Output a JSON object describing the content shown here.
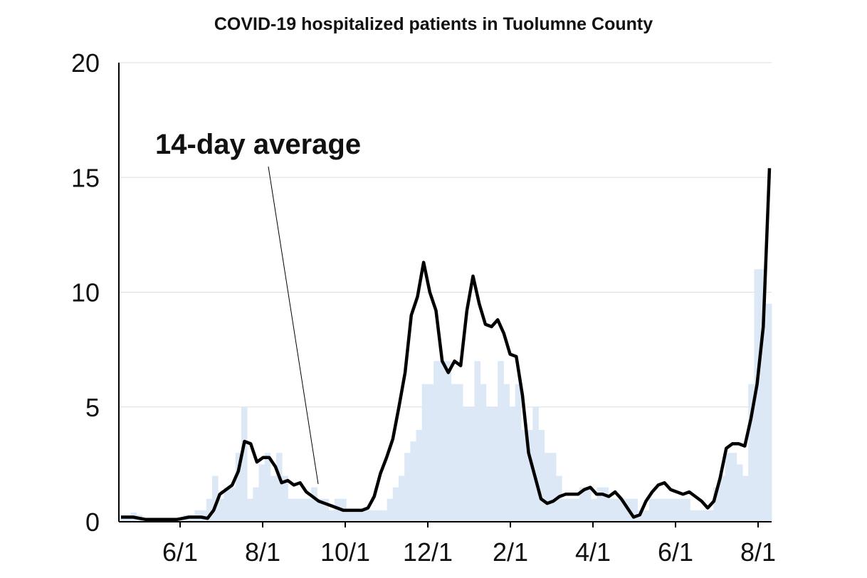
{
  "chart_data": {
    "type": "bar",
    "title": "COVID-19 hospitalized patients in Tuolumne County",
    "xlabel": "",
    "ylabel": "",
    "ylim": [
      0,
      20
    ],
    "y_ticks": [
      "0",
      "5",
      "10",
      "15",
      "20"
    ],
    "x_ticks": [
      "6/1",
      "8/1",
      "10/1",
      "12/1",
      "2/1",
      "4/1",
      "6/1",
      "8/1"
    ],
    "grid": true,
    "annotation": "14-day average",
    "colors": {
      "bars": "#dce8f5",
      "line": "#000000",
      "grid": "#dddddd",
      "axis": "#000000"
    },
    "series": [
      {
        "values": [
          0.3,
          0.3,
          0.4,
          0.3,
          0,
          0,
          0,
          0,
          0,
          0,
          0,
          0.3,
          0.3,
          0.5,
          0.5,
          1,
          2,
          1,
          1.5,
          1.5,
          3,
          5,
          1,
          1.5,
          2.5,
          3,
          2,
          3,
          2,
          1,
          1,
          1,
          1,
          1.5,
          1,
          1,
          0.5,
          1,
          1,
          0.5,
          0.5,
          0.5,
          0.5,
          0.5,
          0.5,
          0.5,
          1,
          1.5,
          2,
          3,
          3.5,
          4,
          6,
          6,
          7,
          7,
          7,
          6,
          6,
          5,
          5,
          7,
          6,
          5,
          5,
          7,
          6,
          5,
          6,
          4,
          4,
          5,
          4,
          3,
          3,
          2,
          1,
          1,
          1,
          1.5,
          1.5,
          1,
          1.5,
          1.5,
          1,
          1,
          1,
          1,
          1,
          0.5,
          0.5,
          1,
          1,
          1,
          1,
          1,
          1,
          1,
          0.5,
          0.5,
          0.5,
          0.5,
          1.5,
          2,
          3,
          3,
          2.5,
          2,
          6,
          11,
          11,
          9.5
        ]
      },
      {
        "values": [
          0.2,
          0.2,
          0.2,
          0.15,
          0.1,
          0.1,
          0.1,
          0.1,
          0.1,
          0.1,
          0.15,
          0.2,
          0.2,
          0.2,
          0.15,
          0.5,
          1.2,
          1.4,
          1.6,
          2.2,
          3.5,
          3.4,
          2.6,
          2.8,
          2.8,
          2.4,
          1.7,
          1.8,
          1.6,
          1.7,
          1.3,
          1.1,
          0.9,
          0.8,
          0.7,
          0.6,
          0.5,
          0.5,
          0.5,
          0.5,
          0.6,
          1.1,
          2.1,
          2.8,
          3.6,
          5,
          6.5,
          9,
          9.8,
          11.3,
          10,
          9.2,
          7,
          6.5,
          7,
          6.8,
          9.2,
          10.7,
          9.5,
          8.6,
          8.5,
          8.8,
          8.2,
          7.3,
          7.2,
          5.5,
          3,
          2,
          1,
          0.8,
          0.9,
          1.1,
          1.2,
          1.2,
          1.2,
          1.4,
          1.5,
          1.2,
          1.2,
          1.1,
          1.3,
          1,
          0.6,
          0.2,
          0.3,
          0.9,
          1.3,
          1.6,
          1.7,
          1.4,
          1.3,
          1.2,
          1.3,
          1.1,
          0.9,
          0.6,
          0.9,
          1.9,
          3.2,
          3.4,
          3.4,
          3.3,
          4.5,
          6,
          8.5,
          15.4
        ]
      }
    ]
  }
}
